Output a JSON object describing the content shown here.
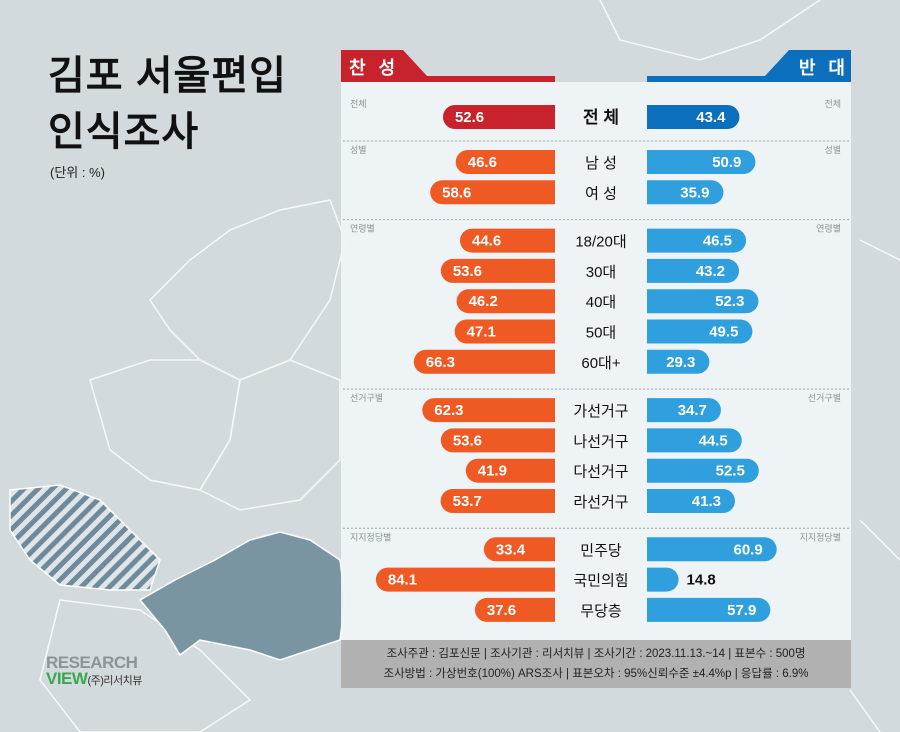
{
  "title_lines": [
    "김포 서울편입",
    "인식조사"
  ],
  "unit": "(단위 : %)",
  "headers": {
    "agree": "찬 성",
    "disagree": "반 대"
  },
  "colors": {
    "agree_total": "#c8232c",
    "disagree_total": "#0b6fbe",
    "agree": "#ef5a24",
    "disagree": "#2f9fde",
    "background": "#d2dade",
    "footer": "#b1b1b1"
  },
  "footer": {
    "line1": "조사주관 : 김포신문 | 조사기관 : 리서치뷰 | 조사기간 : 2023.11.13.~14 | 표본수 : 500명",
    "line2": "조사방법 : 가상번호(100%) ARS조사 | 표본오차 : 95%신뢰수준 ±4.4%p | 응답률 : 6.9%"
  },
  "logo": {
    "line1": "RESEARCH",
    "line2": "VIEW",
    "sub": "(주)리서치뷰"
  },
  "chart_data": {
    "type": "bar",
    "orientation": "diverging-horizontal",
    "xlim": [
      0,
      100
    ],
    "series": [
      {
        "name": "찬 성"
      },
      {
        "name": "반 대"
      }
    ],
    "groups": [
      {
        "label": "전체",
        "rows": [
          {
            "category": "전 체",
            "agree": 52.6,
            "disagree": 43.4
          }
        ]
      },
      {
        "label": "성별",
        "rows": [
          {
            "category": "남 성",
            "agree": 46.6,
            "disagree": 50.9
          },
          {
            "category": "여 성",
            "agree": 58.6,
            "disagree": 35.9
          }
        ]
      },
      {
        "label": "연령별",
        "rows": [
          {
            "category": "18/20대",
            "agree": 44.6,
            "disagree": 46.5
          },
          {
            "category": "30대",
            "agree": 53.6,
            "disagree": 43.2
          },
          {
            "category": "40대",
            "agree": 46.2,
            "disagree": 52.3
          },
          {
            "category": "50대",
            "agree": 47.1,
            "disagree": 49.5
          },
          {
            "category": "60대+",
            "agree": 66.3,
            "disagree": 29.3
          }
        ]
      },
      {
        "label": "선거구별",
        "rows": [
          {
            "category": "가선거구",
            "agree": 62.3,
            "disagree": 34.7
          },
          {
            "category": "나선거구",
            "agree": 53.6,
            "disagree": 44.5
          },
          {
            "category": "다선거구",
            "agree": 41.9,
            "disagree": 52.5
          },
          {
            "category": "라선거구",
            "agree": 53.7,
            "disagree": 41.3
          }
        ]
      },
      {
        "label": "지지정당별",
        "rows": [
          {
            "category": "민주당",
            "agree": 33.4,
            "disagree": 60.9
          },
          {
            "category": "국민의힘",
            "agree": 84.1,
            "disagree": 14.8
          },
          {
            "category": "무당층",
            "agree": 37.6,
            "disagree": 57.9
          }
        ]
      }
    ]
  }
}
